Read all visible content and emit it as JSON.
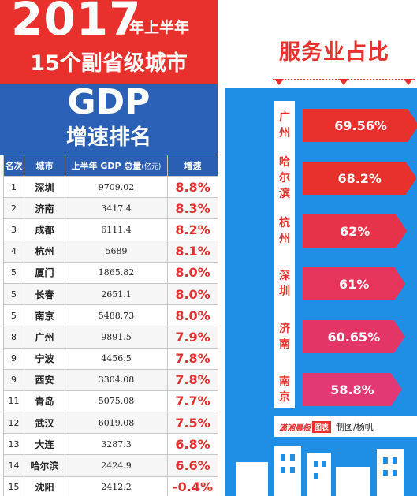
{
  "left": {
    "year": "2017",
    "half": "年上半年",
    "subtitle": "15个副省级城市",
    "gdp": "GDP",
    "rank_title": "增速排名",
    "headers": {
      "rank": "名次",
      "city": "城市",
      "gdp": "上半年 GDP 总量",
      "unit": "(亿元)",
      "rate": "增速"
    },
    "rows": [
      {
        "rank": "1",
        "city": "深圳",
        "gdp": "9709.02",
        "rate": "8.8%"
      },
      {
        "rank": "2",
        "city": "济南",
        "gdp": "3417.4",
        "rate": "8.3%"
      },
      {
        "rank": "3",
        "city": "成都",
        "gdp": "6111.4",
        "rate": "8.2%"
      },
      {
        "rank": "4",
        "city": "杭州",
        "gdp": "5689",
        "rate": "8.1%"
      },
      {
        "rank": "5",
        "city": "厦门",
        "gdp": "1865.82",
        "rate": "8.0%"
      },
      {
        "rank": "5",
        "city": "长春",
        "gdp": "2651.1",
        "rate": "8.0%"
      },
      {
        "rank": "5",
        "city": "南京",
        "gdp": "5488.73",
        "rate": "8.0%"
      },
      {
        "rank": "8",
        "city": "广州",
        "gdp": "9891.5",
        "rate": "7.9%"
      },
      {
        "rank": "9",
        "city": "宁波",
        "gdp": "4456.5",
        "rate": "7.8%"
      },
      {
        "rank": "9",
        "city": "西安",
        "gdp": "3304.08",
        "rate": "7.8%"
      },
      {
        "rank": "11",
        "city": "青岛",
        "gdp": "5075.08",
        "rate": "7.7%"
      },
      {
        "rank": "12",
        "city": "武汉",
        "gdp": "6019.08",
        "rate": "7.5%"
      },
      {
        "rank": "13",
        "city": "大连",
        "gdp": "3287.3",
        "rate": "6.8%"
      },
      {
        "rank": "14",
        "city": "哈尔滨",
        "gdp": "2424.9",
        "rate": "6.6%"
      },
      {
        "rank": "15",
        "city": "沈阳",
        "gdp": "2412.2",
        "rate": "-0.4%"
      }
    ]
  },
  "right": {
    "title": "服务业占比",
    "bars": [
      {
        "city": "广州",
        "label": "69.56%",
        "value": 69.56,
        "color": "#e8302c"
      },
      {
        "city": "哈尔滨",
        "label": "68.2%",
        "value": 68.2,
        "color": "#e8302c"
      },
      {
        "city": "杭州",
        "label": "62%",
        "value": 62,
        "color": "#e6334a"
      },
      {
        "city": "深圳",
        "label": "61%",
        "value": 61,
        "color": "#e6345a"
      },
      {
        "city": "济南",
        "label": "60.65%",
        "value": 60.65,
        "color": "#e33566"
      },
      {
        "city": "南京",
        "label": "58.8%",
        "value": 58.8,
        "color": "#e23873"
      }
    ],
    "footer": {
      "logo": "潇湘晨报",
      "logo_tag": "图表",
      "credit": "制图/杨帆"
    }
  }
}
